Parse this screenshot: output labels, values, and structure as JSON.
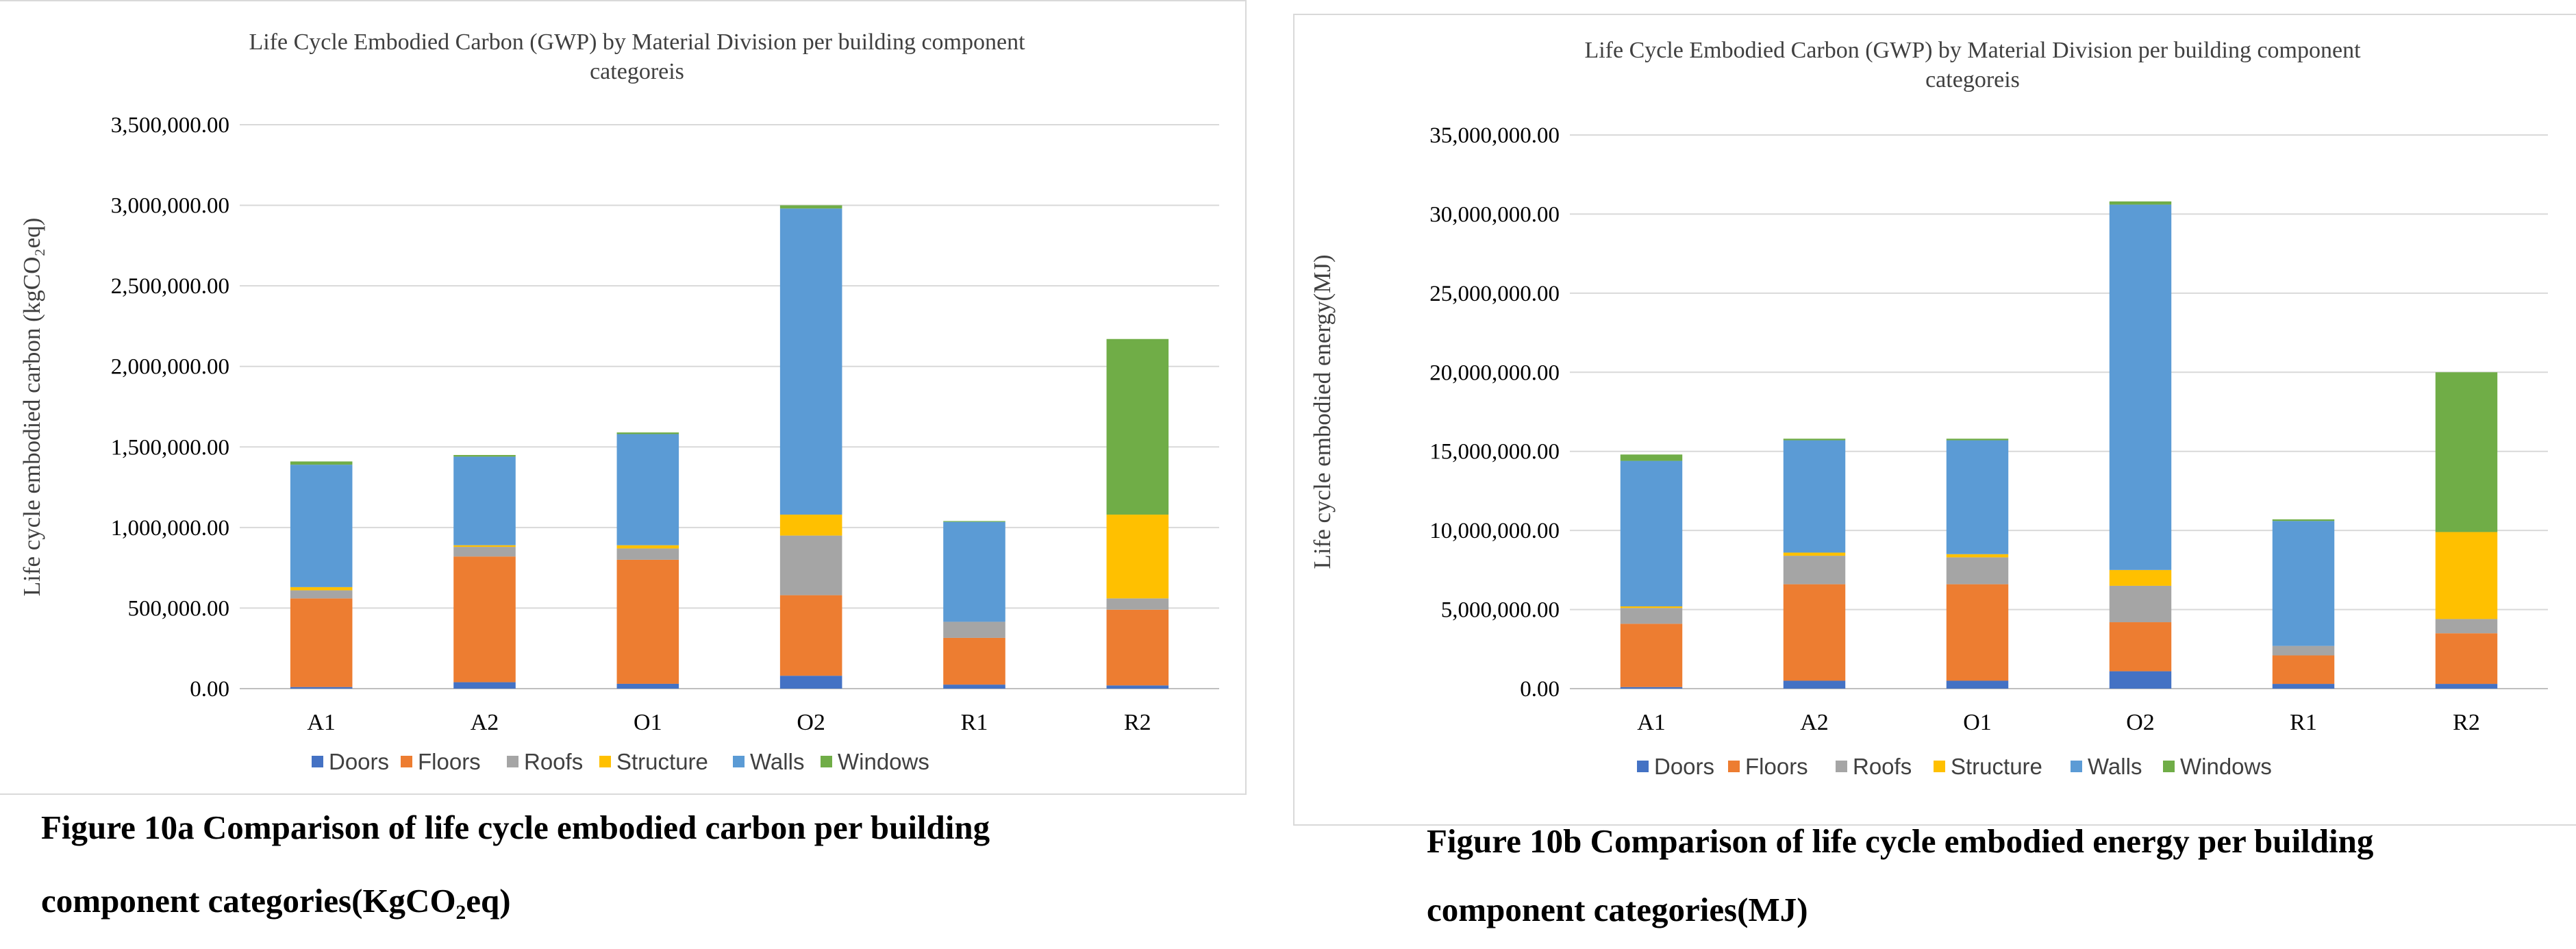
{
  "colors": {
    "Doors": "#4472c4",
    "Floors": "#ed7d31",
    "Roofs": "#a5a5a5",
    "Structure": "#ffc000",
    "Walls": "#5b9bd5",
    "Windows": "#70ad47"
  },
  "chart_data": [
    {
      "type": "bar",
      "stacked": true,
      "title_line1": "Life Cycle Embodied Carbon (GWP) by Material Division per building component",
      "title_line2": "categoreis",
      "ylabel": "Life cycle embodied carbon (kgCO₂eq)",
      "xlabel": "",
      "ylim": [
        0,
        3500000
      ],
      "yticks": [
        "0.00",
        "500,000.00",
        "1,000,000.00",
        "1,500,000.00",
        "2,000,000.00",
        "2,500,000.00",
        "3,000,000.00",
        "3,500,000.00"
      ],
      "categories": [
        "A1",
        "A2",
        "O1",
        "O2",
        "R1",
        "R2"
      ],
      "legend": [
        "Doors",
        "Floors",
        "Roofs",
        "Structure",
        "Walls",
        "Windows"
      ],
      "legend_position": "bottom",
      "series": [
        {
          "name": "Doors",
          "values": [
            10000,
            40000,
            30000,
            80000,
            25000,
            20000
          ]
        },
        {
          "name": "Floors",
          "values": [
            550000,
            780000,
            770000,
            500000,
            290000,
            470000
          ]
        },
        {
          "name": "Roofs",
          "values": [
            50000,
            60000,
            70000,
            370000,
            100000,
            70000
          ]
        },
        {
          "name": "Structure",
          "values": [
            20000,
            10000,
            20000,
            130000,
            0,
            520000
          ]
        },
        {
          "name": "Walls",
          "values": [
            760000,
            550000,
            690000,
            1900000,
            620000,
            0
          ]
        },
        {
          "name": "Windows",
          "values": [
            20000,
            10000,
            10000,
            20000,
            5000,
            1090000
          ]
        }
      ]
    },
    {
      "type": "bar",
      "stacked": true,
      "title_line1": "Life Cycle Embodied Carbon (GWP) by Material Division per building component",
      "title_line2": "categoreis",
      "ylabel": "Life cycle embodied energy(MJ)",
      "xlabel": "",
      "ylim": [
        0,
        35000000
      ],
      "yticks": [
        "0.00",
        "5,000,000.00",
        "10,000,000.00",
        "15,000,000.00",
        "20,000,000.00",
        "25,000,000.00",
        "30,000,000.00",
        "35,000,000.00"
      ],
      "categories": [
        "A1",
        "A2",
        "O1",
        "O2",
        "R1",
        "R2"
      ],
      "legend": [
        "Doors",
        "Floors",
        "Roofs",
        "Structure",
        "Walls",
        "Windows"
      ],
      "legend_position": "bottom",
      "series": [
        {
          "name": "Doors",
          "values": [
            100000,
            500000,
            500000,
            1100000,
            300000,
            300000
          ]
        },
        {
          "name": "Floors",
          "values": [
            4000000,
            6100000,
            6100000,
            3100000,
            1800000,
            3200000
          ]
        },
        {
          "name": "Roofs",
          "values": [
            1000000,
            1800000,
            1700000,
            2300000,
            600000,
            900000
          ]
        },
        {
          "name": "Structure",
          "values": [
            100000,
            200000,
            200000,
            1000000,
            0,
            5500000
          ]
        },
        {
          "name": "Walls",
          "values": [
            9200000,
            7100000,
            7200000,
            23100000,
            7900000,
            0
          ]
        },
        {
          "name": "Windows",
          "values": [
            400000,
            100000,
            100000,
            200000,
            100000,
            10100000
          ]
        }
      ]
    }
  ],
  "captions": {
    "a_line1": "Figure 10a Comparison of life cycle embodied carbon per building",
    "a_line2": "component categories(KgCO₂eq)",
    "b_line1": "Figure 10b Comparison of life cycle embodied energy per building",
    "b_line2": "component categories(MJ)"
  }
}
